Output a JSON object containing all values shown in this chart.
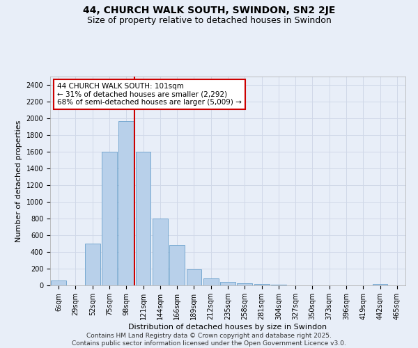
{
  "title": "44, CHURCH WALK SOUTH, SWINDON, SN2 2JE",
  "subtitle": "Size of property relative to detached houses in Swindon",
  "xlabel": "Distribution of detached houses by size in Swindon",
  "ylabel": "Number of detached properties",
  "categories": [
    "6sqm",
    "29sqm",
    "52sqm",
    "75sqm",
    "98sqm",
    "121sqm",
    "144sqm",
    "166sqm",
    "189sqm",
    "212sqm",
    "235sqm",
    "258sqm",
    "281sqm",
    "304sqm",
    "327sqm",
    "350sqm",
    "373sqm",
    "396sqm",
    "419sqm",
    "442sqm",
    "465sqm"
  ],
  "values": [
    55,
    0,
    500,
    1600,
    1970,
    1600,
    800,
    480,
    195,
    80,
    38,
    22,
    15,
    8,
    4,
    2,
    1,
    0,
    0,
    15,
    0
  ],
  "bar_color": "#b8d0ea",
  "bar_edge_color": "#6aa0cc",
  "grid_color": "#d0d8e8",
  "background_color": "#e8eef8",
  "property_line_bin": 4,
  "annotation_text": "44 CHURCH WALK SOUTH: 101sqm\n← 31% of detached houses are smaller (2,292)\n68% of semi-detached houses are larger (5,009) →",
  "annotation_box_color": "#ffffff",
  "annotation_box_edge_color": "#cc0000",
  "red_line_color": "#cc0000",
  "ylim": [
    0,
    2500
  ],
  "yticks": [
    0,
    200,
    400,
    600,
    800,
    1000,
    1200,
    1400,
    1600,
    1800,
    2000,
    2200,
    2400
  ],
  "footer": "Contains HM Land Registry data © Crown copyright and database right 2025.\nContains public sector information licensed under the Open Government Licence v3.0.",
  "title_fontsize": 10,
  "subtitle_fontsize": 9,
  "axis_label_fontsize": 8,
  "tick_fontsize": 7,
  "annotation_fontsize": 7.5,
  "footer_fontsize": 6.5
}
